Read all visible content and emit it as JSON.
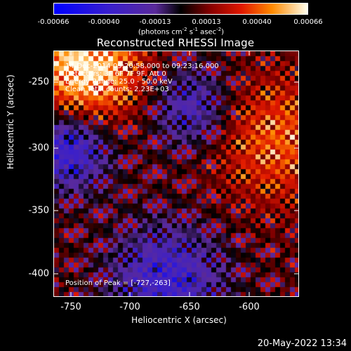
{
  "colorbar": {
    "ticks": [
      "-0.00066",
      "-0.00040",
      "-0.00013",
      "0.00013",
      "0.00040",
      "0.00066"
    ],
    "units_main": "(photons cm",
    "units_exp1": "-2",
    "units_mid1": " s",
    "units_exp2": "-1",
    "units_mid2": " asec",
    "units_exp3": "-2",
    "units_end": ")"
  },
  "title": "Reconstructed RHESSI Image",
  "annotations": {
    "time_range": "14-Dec-2014 09:20:58.000 to 09:23:16.000",
    "detectors": "Detectors: 3F 6F 7F 9F, Att 0",
    "energy_range": "Energy Range: 25.0 - 50.0 keV",
    "clean_counts": "Clean    Total counts: 2.23E+03",
    "peak_position": "Position of Peak = [-727,-263]"
  },
  "axes": {
    "x_label": "Heliocentric X (arcsec)",
    "y_label": "Heliocentric Y (arcsec)",
    "x_ticks": [
      "-750",
      "-700",
      "-650",
      "-600"
    ],
    "y_ticks": [
      "-250",
      "-300",
      "-350",
      "-400"
    ]
  },
  "timestamp": "20-May-2022 13:34",
  "colors": {
    "background": "#000000",
    "low": "#0000ff",
    "mid_low": "#5a2a9a",
    "mid": "#000000",
    "mid_high": "#cc1a00",
    "high": "#ffff88"
  }
}
